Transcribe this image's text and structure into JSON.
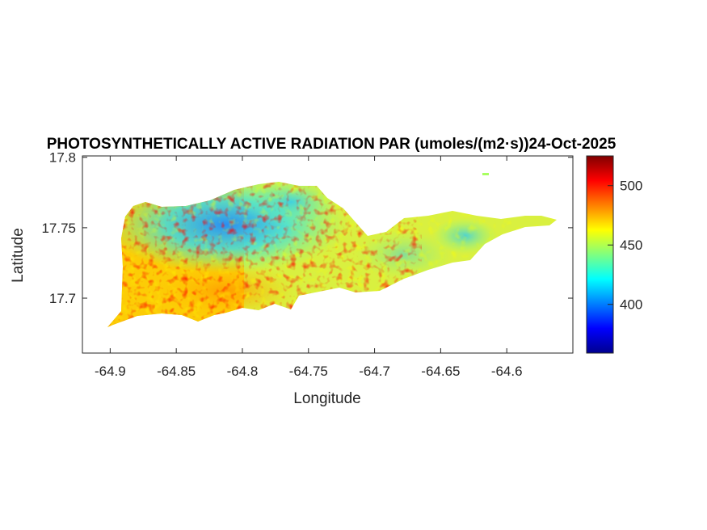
{
  "chart_data": {
    "type": "heatmap",
    "title": "PHOTOSYNTHETICALLY ACTIVE RADIATION PAR (umoles/(m2·s))24-Oct-2025",
    "xlabel": "Longitude",
    "ylabel": "Latitude",
    "xlim": [
      -64.921,
      -64.55
    ],
    "ylim": [
      17.661,
      17.801
    ],
    "xticks": [
      -64.9,
      -64.85,
      -64.8,
      -64.75,
      -64.7,
      -64.65,
      -64.6
    ],
    "xtick_labels": [
      "-64.9",
      "-64.85",
      "-64.8",
      "-64.75",
      "-64.7",
      "-64.65",
      "-64.6"
    ],
    "yticks": [
      17.7,
      17.75,
      17.8
    ],
    "ytick_labels": [
      "17.7",
      "17.75",
      "17.8"
    ],
    "colorbar": {
      "colormap": "jet",
      "clim": [
        359,
        525
      ],
      "ticks": [
        400,
        450,
        500
      ],
      "tick_labels": [
        "400",
        "450",
        "500"
      ]
    },
    "regions": [
      {
        "name": "northwest",
        "approx_value": 425
      },
      {
        "name": "west-south",
        "approx_value": 480
      },
      {
        "name": "central-east",
        "approx_value": 455
      },
      {
        "name": "east-cyan-patch",
        "approx_value": 435
      }
    ],
    "grid": false
  }
}
